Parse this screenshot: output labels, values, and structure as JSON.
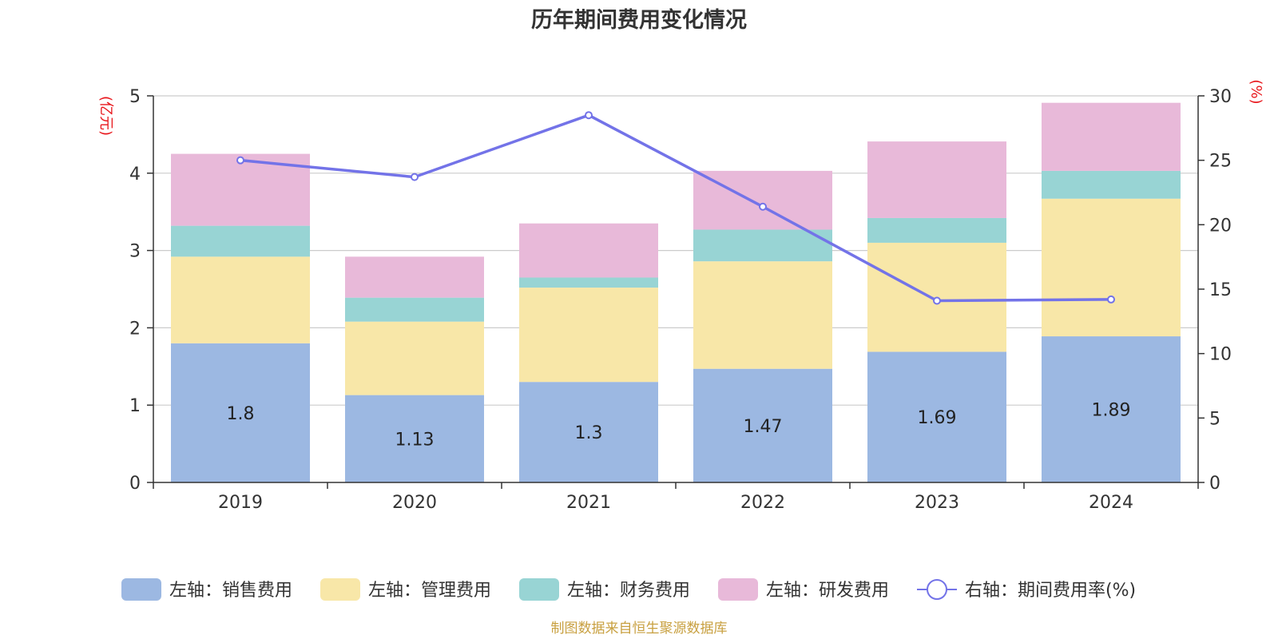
{
  "title": "历年期间费用变化情况",
  "source": "制图数据来自恒生聚源数据库",
  "chart_data": {
    "type": "bar",
    "stacked": true,
    "categories": [
      "2019",
      "2020",
      "2021",
      "2022",
      "2023",
      "2024"
    ],
    "left_axis": {
      "unit": "(亿元)",
      "ylim": [
        0,
        5
      ],
      "ticks": [
        "0",
        "1",
        "2",
        "3",
        "4",
        "5"
      ]
    },
    "right_axis": {
      "unit": "(%)",
      "ylim": [
        0,
        30
      ],
      "ticks": [
        "0",
        "5",
        "10",
        "15",
        "20",
        "25",
        "30"
      ]
    },
    "series": [
      {
        "name": "左轴：销售费用",
        "color": "#9cb8e2",
        "values": [
          1.8,
          1.13,
          1.3,
          1.47,
          1.69,
          1.89
        ],
        "labels": [
          "1.8",
          "1.13",
          "1.3",
          "1.47",
          "1.69",
          "1.89"
        ]
      },
      {
        "name": "左轴：管理费用",
        "color": "#f8e7a8",
        "values": [
          1.12,
          0.95,
          1.22,
          1.39,
          1.41,
          1.78
        ]
      },
      {
        "name": "左轴：财务费用",
        "color": "#98d4d4",
        "values": [
          0.4,
          0.31,
          0.13,
          0.41,
          0.32,
          0.36
        ]
      },
      {
        "name": "左轴：研发费用",
        "color": "#e8b9d9",
        "values": [
          0.93,
          0.53,
          0.7,
          0.76,
          0.99,
          0.88
        ]
      }
    ],
    "line": {
      "name": "右轴：期间费用率(%)",
      "color": "#7373e8",
      "values": [
        25.0,
        23.7,
        28.5,
        21.4,
        14.1,
        14.2
      ]
    },
    "grid": true,
    "legend_position": "bottom"
  }
}
